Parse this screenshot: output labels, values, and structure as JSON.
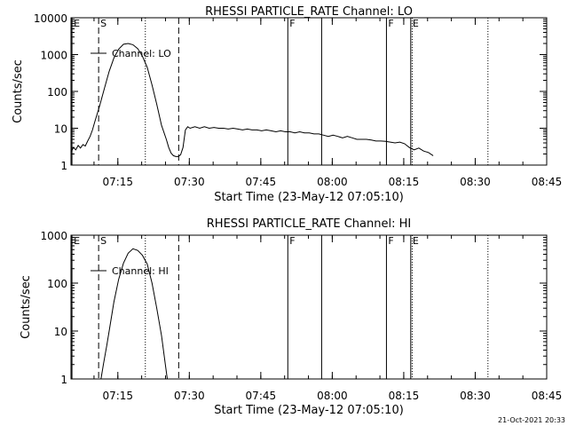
{
  "timestamp": "21-Oct-2021 20:33",
  "chart_data": [
    {
      "type": "line",
      "title": "RHESSI PARTICLE_RATE Channel: LO",
      "xlabel": "Start Time (23-May-12 07:05:10)",
      "ylabel": "Counts/sec",
      "x_unit": "minutes after 07:05:10",
      "xlim": [
        0,
        99.83
      ],
      "ylim": [
        1,
        10000
      ],
      "yscale": "log",
      "x_ticks": [
        "07:15",
        "07:30",
        "07:45",
        "08:00",
        "08:15",
        "08:30",
        "08:45"
      ],
      "y_ticks": [
        "1",
        "10",
        "100",
        "1000",
        "10000"
      ],
      "legend": {
        "position": "top-left",
        "entries": [
          "Channel: LO"
        ]
      },
      "markers": [
        {
          "label": "E",
          "t": 0.2,
          "style": "solid"
        },
        {
          "label": "S",
          "t": 5.8,
          "style": "dashed"
        },
        {
          "label": "",
          "t": 15.6,
          "style": "dotted"
        },
        {
          "label": "",
          "t": 22.6,
          "style": "dashed"
        },
        {
          "label": "F",
          "t": 45.5,
          "style": "solid"
        },
        {
          "label": "",
          "t": 52.6,
          "style": "solid"
        },
        {
          "label": "F",
          "t": 66.2,
          "style": "solid"
        },
        {
          "label": "E",
          "t": 71.3,
          "style": "solid"
        },
        {
          "label": "",
          "t": 71.6,
          "style": "dotted"
        },
        {
          "label": "",
          "t": 87.5,
          "style": "dotted"
        }
      ],
      "series": [
        {
          "name": "Channel: LO",
          "x": [
            0,
            0.5,
            1.0,
            1.5,
            2.0,
            2.5,
            3.0,
            3.5,
            4.0,
            4.5,
            5.0,
            6.0,
            7.0,
            8.0,
            9.0,
            10.0,
            11.0,
            12.0,
            13.0,
            14.0,
            15.0,
            16.0,
            17.0,
            18.0,
            19.0,
            20.0,
            20.5,
            21.0,
            21.5,
            22.0,
            22.5,
            23.0,
            23.5,
            24.0,
            24.5,
            25.0,
            26.0,
            27.0,
            28.0,
            29.0,
            30.0,
            31.0,
            32.0,
            33.0,
            34.0,
            35.0,
            36.0,
            37.0,
            38.0,
            39.0,
            40.0,
            41.0,
            42.0,
            43.0,
            44.0,
            45.0,
            46.0,
            47.0,
            48.0,
            49.0,
            50.0,
            51.0,
            52.0,
            53.0,
            54.0,
            55.0,
            56.0,
            57.0,
            58.0,
            59.0,
            60.0,
            61.0,
            62.0,
            63.0,
            64.0,
            65.0,
            66.0,
            67.0,
            68.0,
            69.0,
            70.0,
            71.0,
            72.0,
            73.0,
            74.0,
            75.0,
            76.0
          ],
          "y": [
            2.2,
            3.0,
            2.6,
            3.4,
            2.9,
            3.6,
            3.3,
            4.5,
            6.0,
            9.0,
            15,
            40,
            120,
            350,
            800,
            1400,
            1900,
            2000,
            1850,
            1450,
            900,
            450,
            150,
            45,
            12,
            5,
            3,
            2.1,
            1.8,
            1.7,
            1.7,
            1.9,
            3,
            9,
            11,
            10,
            11,
            10,
            11,
            10,
            10.5,
            10,
            10,
            9.5,
            10,
            9.5,
            9,
            9.5,
            9,
            9,
            8.5,
            9,
            8.5,
            8,
            8.5,
            8,
            8,
            7.5,
            8,
            7.5,
            7.5,
            7,
            7,
            6.5,
            6,
            6.5,
            6,
            5.5,
            6,
            5.5,
            5,
            5,
            5,
            4.8,
            4.5,
            4.5,
            4.4,
            4.2,
            4.0,
            4.2,
            3.8,
            3.0,
            2.6,
            2.9,
            2.4,
            2.2,
            1.8
          ]
        }
      ]
    },
    {
      "type": "line",
      "title": "RHESSI PARTICLE_RATE Channel: HI",
      "xlabel": "Start Time (23-May-12 07:05:10)",
      "ylabel": "Counts/sec",
      "x_unit": "minutes after 07:05:10",
      "xlim": [
        0,
        99.83
      ],
      "ylim": [
        1,
        1000
      ],
      "yscale": "log",
      "x_ticks": [
        "07:15",
        "07:30",
        "07:45",
        "08:00",
        "08:15",
        "08:30",
        "08:45"
      ],
      "y_ticks": [
        "1",
        "10",
        "100",
        "1000"
      ],
      "legend": {
        "position": "top-left",
        "entries": [
          "Channel: HI"
        ]
      },
      "markers": [
        {
          "label": "E",
          "t": 0.2,
          "style": "solid"
        },
        {
          "label": "S",
          "t": 5.8,
          "style": "dashed"
        },
        {
          "label": "",
          "t": 15.6,
          "style": "dotted"
        },
        {
          "label": "",
          "t": 22.6,
          "style": "dashed"
        },
        {
          "label": "F",
          "t": 45.5,
          "style": "solid"
        },
        {
          "label": "",
          "t": 52.6,
          "style": "solid"
        },
        {
          "label": "F",
          "t": 66.2,
          "style": "solid"
        },
        {
          "label": "E",
          "t": 71.3,
          "style": "solid"
        },
        {
          "label": "",
          "t": 71.6,
          "style": "dotted"
        },
        {
          "label": "",
          "t": 87.5,
          "style": "dotted"
        }
      ],
      "series": [
        {
          "name": "Channel: HI",
          "x": [
            6.3,
            6.8,
            7.5,
            8.0,
            9.0,
            10.0,
            11.0,
            12.0,
            13.0,
            14.0,
            15.0,
            16.0,
            17.0,
            18.0,
            19.0,
            19.8,
            20.2
          ],
          "y": [
            1.0,
            2,
            5,
            10,
            40,
            120,
            260,
            420,
            520,
            480,
            380,
            250,
            100,
            30,
            8,
            2,
            1.0
          ]
        }
      ]
    }
  ]
}
